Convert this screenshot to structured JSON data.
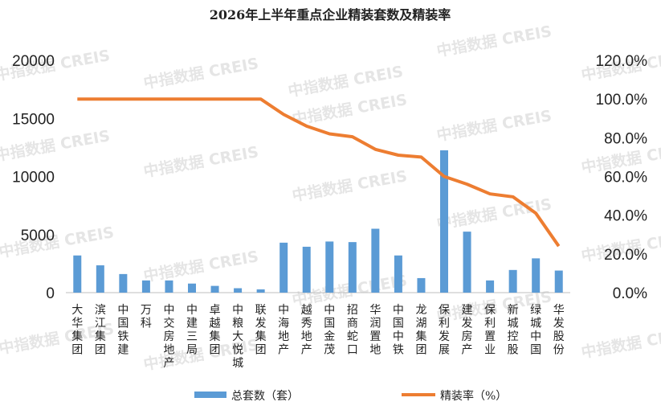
{
  "chart_data": {
    "type": "bar",
    "title": "2026年上半年重点企业精装套数及精装率",
    "categories": [
      "大华集团",
      "滨江集团",
      "中国铁建",
      "万科",
      "中交房地产",
      "中建三局",
      "卓越集团",
      "中粮大悦城",
      "联发集团",
      "中海地产",
      "越秀地产",
      "中国金茂",
      "招商蛇口",
      "华润置地",
      "中国中铁",
      "龙湖集团",
      "保利发展",
      "建发房产",
      "保利置业",
      "新城控股",
      "绿城中国",
      "华发股份"
    ],
    "left_axis": {
      "min": 0,
      "max": 20000,
      "ticks": [
        "0",
        "5000",
        "10000",
        "15000",
        "20000"
      ]
    },
    "right_axis": {
      "min": 0,
      "max": 1.2,
      "ticks": [
        "0.0%",
        "20.0%",
        "40.0%",
        "60.0%",
        "80.0%",
        "100.0%",
        "120.0%"
      ]
    },
    "series": [
      {
        "name": "总套数（套）",
        "type": "bar",
        "axis": "left",
        "color": "#5b9bd5",
        "values": [
          3200,
          2350,
          1600,
          1050,
          1050,
          780,
          580,
          380,
          280,
          4300,
          3950,
          4400,
          4350,
          5500,
          3200,
          1250,
          12250,
          5250,
          1050,
          1950,
          2950,
          1900
        ]
      },
      {
        "name": "精装率（%）",
        "type": "line",
        "axis": "right",
        "color": "#ed7d31",
        "values": [
          1.0,
          1.0,
          1.0,
          1.0,
          1.0,
          1.0,
          1.0,
          1.0,
          1.0,
          0.92,
          0.86,
          0.82,
          0.805,
          0.74,
          0.71,
          0.7,
          0.6,
          0.56,
          0.51,
          0.495,
          0.41,
          0.24
        ]
      }
    ],
    "legend_position": "bottom",
    "grid": false
  },
  "watermark": "中指数据 CREIS"
}
